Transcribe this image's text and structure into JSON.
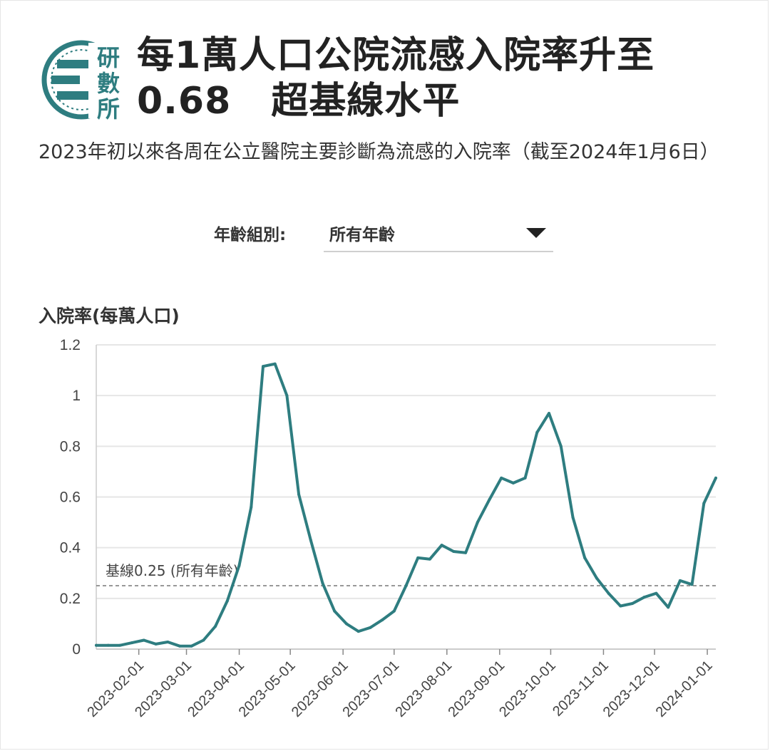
{
  "header": {
    "logo_text": "研數所",
    "title_line1": "每1萬人口公院流感入院率升至",
    "title_line2_value": "0.68",
    "title_line2_rest": "超基線水平"
  },
  "subtitle": "2023年初以來各周在公立醫院主要診斷為流感的入院率（截至2024年1月6日）",
  "filter": {
    "label": "年齡組別:",
    "selected": "所有年齡"
  },
  "colors": {
    "line": "#2e7d80",
    "logo": "#2e7d80",
    "grid": "#e6e6e6",
    "baseline": "#777777"
  },
  "chart_data": {
    "type": "line",
    "ylabel": "入院率(每萬人口)",
    "ylim": [
      0,
      1.2
    ],
    "yticks": [
      0,
      0.2,
      0.4,
      0.6,
      0.8,
      1,
      1.2
    ],
    "ytick_labels": [
      "0",
      "0.2",
      "0.4",
      "0.6",
      "0.8",
      "1",
      "1.2"
    ],
    "xlim": [
      "2023-01-07",
      "2024-01-06"
    ],
    "xticks": [
      "2023-02-01",
      "2023-03-01",
      "2023-04-01",
      "2023-05-01",
      "2023-06-01",
      "2023-07-01",
      "2023-08-01",
      "2023-09-01",
      "2023-10-01",
      "2023-11-01",
      "2023-12-01",
      "2024-01-01"
    ],
    "baseline": {
      "value": 0.25,
      "label": "基線0.25 (所有年齡)"
    },
    "grid": true,
    "series": [
      {
        "x": [
          "2023-01-07",
          "2023-01-14",
          "2023-01-21",
          "2023-01-28",
          "2023-02-04",
          "2023-02-11",
          "2023-02-18",
          "2023-02-25",
          "2023-03-04",
          "2023-03-11",
          "2023-03-18",
          "2023-03-25",
          "2023-04-01",
          "2023-04-08",
          "2023-04-15",
          "2023-04-22",
          "2023-04-29",
          "2023-05-06",
          "2023-05-13",
          "2023-05-20",
          "2023-05-27",
          "2023-06-03",
          "2023-06-10",
          "2023-06-17",
          "2023-06-24",
          "2023-07-01",
          "2023-07-08",
          "2023-07-15",
          "2023-07-22",
          "2023-07-29",
          "2023-08-05",
          "2023-08-12",
          "2023-08-19",
          "2023-08-26",
          "2023-09-02",
          "2023-09-09",
          "2023-09-16",
          "2023-09-23",
          "2023-09-30",
          "2023-10-07",
          "2023-10-14",
          "2023-10-21",
          "2023-10-28",
          "2023-11-04",
          "2023-11-11",
          "2023-11-18",
          "2023-11-25",
          "2023-12-02",
          "2023-12-09",
          "2023-12-16",
          "2023-12-23",
          "2023-12-30",
          "2024-01-06"
        ],
        "values": [
          0.015,
          0.015,
          0.015,
          0.025,
          0.035,
          0.02,
          0.028,
          0.012,
          0.012,
          0.035,
          0.09,
          0.19,
          0.33,
          0.56,
          1.115,
          1.125,
          1.0,
          0.61,
          0.43,
          0.26,
          0.15,
          0.1,
          0.07,
          0.085,
          0.115,
          0.15,
          0.25,
          0.36,
          0.355,
          0.41,
          0.385,
          0.38,
          0.5,
          0.59,
          0.675,
          0.655,
          0.675,
          0.855,
          0.93,
          0.8,
          0.52,
          0.36,
          0.28,
          0.22,
          0.17,
          0.18,
          0.205,
          0.22,
          0.165,
          0.27,
          0.255,
          0.575,
          0.675
        ]
      }
    ]
  }
}
